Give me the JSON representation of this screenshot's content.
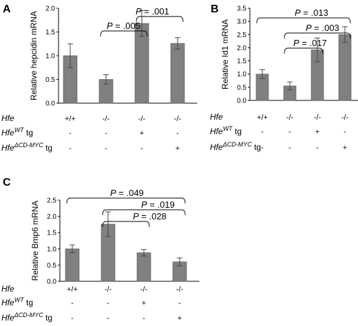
{
  "chart_data": [
    {
      "panel": "A",
      "type": "bar",
      "ylabel": "Relative hepcidin mRNA",
      "ylim": [
        0,
        2.0
      ],
      "yticks": [
        "0.0",
        "0.5",
        "1.0",
        "1.5",
        "2.0"
      ],
      "values": [
        1.0,
        0.5,
        1.68,
        1.26
      ],
      "errors": [
        0.25,
        0.1,
        0.27,
        0.12
      ],
      "bar_color": "#808080",
      "genotype_rows": [
        {
          "label": "Hfe",
          "sup": "",
          "suffix": "",
          "values": [
            "+/+",
            "-/-",
            "-/-",
            "-/-"
          ]
        },
        {
          "label": "Hfe",
          "sup": "WT",
          "suffix": " tg",
          "values": [
            "-",
            "-",
            "+",
            "-"
          ]
        },
        {
          "label": "Hfe",
          "sup": "ΔCD-MYC",
          "suffix": " tg",
          "values": [
            "-",
            "-",
            "-",
            "+"
          ]
        }
      ],
      "annotations": [
        {
          "label_italic": "P",
          "label_rest": " = .005",
          "from": 1,
          "to": 2
        },
        {
          "label_italic": "P",
          "label_rest": " = .001",
          "from": 2,
          "to": 3
        }
      ]
    },
    {
      "panel": "B",
      "type": "bar",
      "ylabel": "Relative Id1 mRNA",
      "ylim": [
        0,
        3.5
      ],
      "yticks": [
        "0.0",
        "0.5",
        "1.0",
        "1.5",
        "2.0",
        "2.5",
        "3.0",
        "3.5"
      ],
      "values": [
        1.0,
        0.55,
        1.92,
        2.5
      ],
      "errors": [
        0.17,
        0.15,
        0.45,
        0.3
      ],
      "bar_color": "#808080",
      "genotype_rows": [
        {
          "label": "Hfe",
          "sup": "",
          "suffix": "",
          "values": [
            "+/+",
            "-/-",
            "-/-",
            "-/-"
          ]
        },
        {
          "label": "Hfe",
          "sup": "WT",
          "suffix": " tg",
          "values": [
            "-",
            "-",
            "+",
            "-"
          ]
        },
        {
          "label": "Hfe",
          "sup": "ΔCD-MYC",
          "suffix": " tg",
          "values": [
            "-",
            "-",
            "-",
            "+"
          ]
        }
      ],
      "annotations": [
        {
          "label_italic": "P",
          "label_rest": " = .017",
          "from": 1,
          "to": 2
        },
        {
          "label_italic": "P",
          "label_rest": " = .003",
          "from": 1,
          "to": 3
        },
        {
          "label_italic": "P",
          "label_rest": " = .013",
          "from": 0,
          "to": 3
        }
      ]
    },
    {
      "panel": "C",
      "type": "bar",
      "ylabel": "Relative Bmp6 mRNA",
      "ylim": [
        0,
        2.5
      ],
      "yticks": [
        "0.0",
        "0.5",
        "1.0",
        "1.5",
        "2.0",
        "2.5"
      ],
      "values": [
        1.0,
        1.76,
        0.88,
        0.6
      ],
      "errors": [
        0.12,
        0.38,
        0.1,
        0.12
      ],
      "bar_color": "#808080",
      "genotype_rows": [
        {
          "label": "Hfe",
          "sup": "",
          "suffix": "",
          "values": [
            "+/+",
            "-/-",
            "-/-",
            "-/-"
          ]
        },
        {
          "label": "Hfe",
          "sup": "WT",
          "suffix": " tg",
          "values": [
            "-",
            "-",
            "+",
            "-"
          ]
        },
        {
          "label": "Hfe",
          "sup": "ΔCD-MYC",
          "suffix": " tg",
          "values": [
            "-",
            "-",
            "-",
            "+"
          ]
        }
      ],
      "annotations": [
        {
          "label_italic": "P",
          "label_rest": " = .028",
          "from": 1,
          "to": 2
        },
        {
          "label_italic": "P",
          "label_rest": " = .019",
          "from": 1,
          "to": 3
        },
        {
          "label_italic": "P",
          "label_rest": " = .049",
          "from": 0,
          "to": 3
        }
      ]
    }
  ]
}
